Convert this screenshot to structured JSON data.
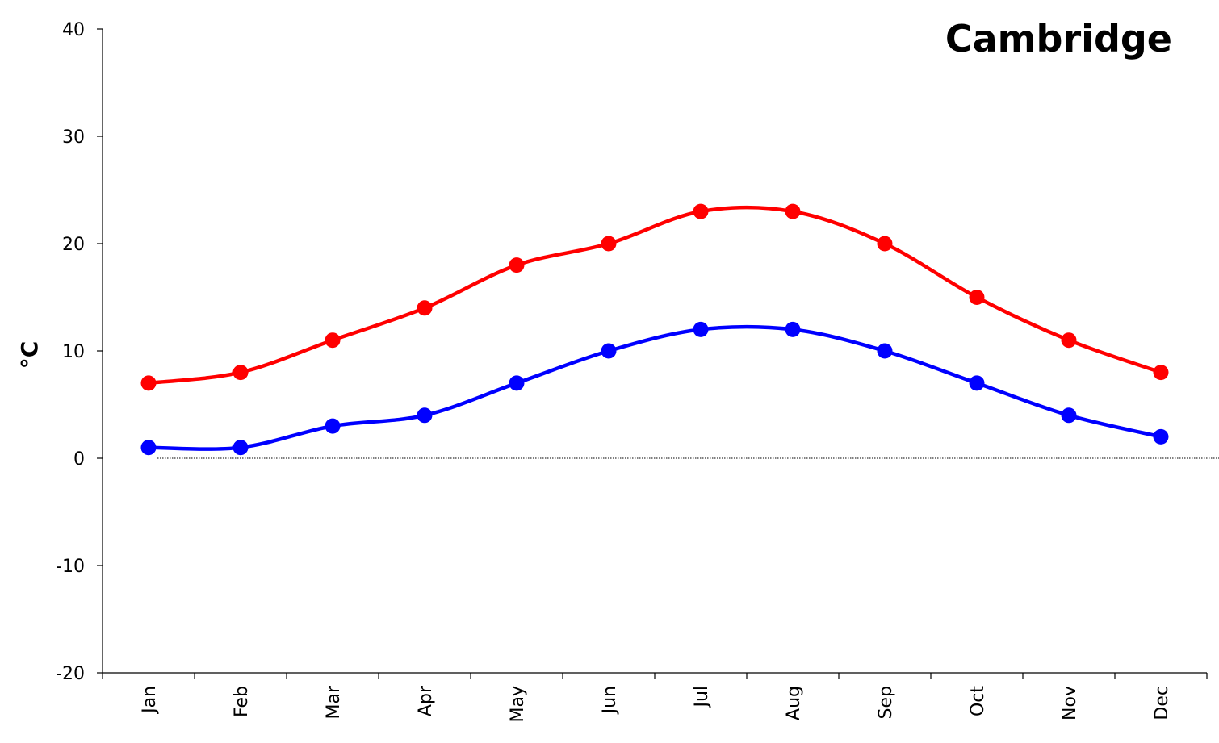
{
  "chart_data": {
    "type": "line",
    "title": "Cambridge",
    "ylabel": "°C",
    "xlabel": "",
    "categories": [
      "Jan",
      "Feb",
      "Mar",
      "Apr",
      "May",
      "Jun",
      "Jul",
      "Aug",
      "Sep",
      "Oct",
      "Nov",
      "Dec"
    ],
    "ylim": [
      -20,
      40
    ],
    "yticks": [
      "-20",
      "-10",
      "0",
      "10",
      "20",
      "30",
      "40"
    ],
    "grid": false,
    "zero_line": true,
    "series": [
      {
        "color": "#ff0000",
        "values": [
          7,
          8,
          11,
          14,
          18,
          20,
          23,
          23,
          20,
          15,
          11,
          8
        ]
      },
      {
        "color": "#0000ff",
        "values": [
          1,
          1,
          3,
          4,
          7,
          10,
          12,
          12,
          10,
          7,
          4,
          2
        ]
      }
    ]
  }
}
